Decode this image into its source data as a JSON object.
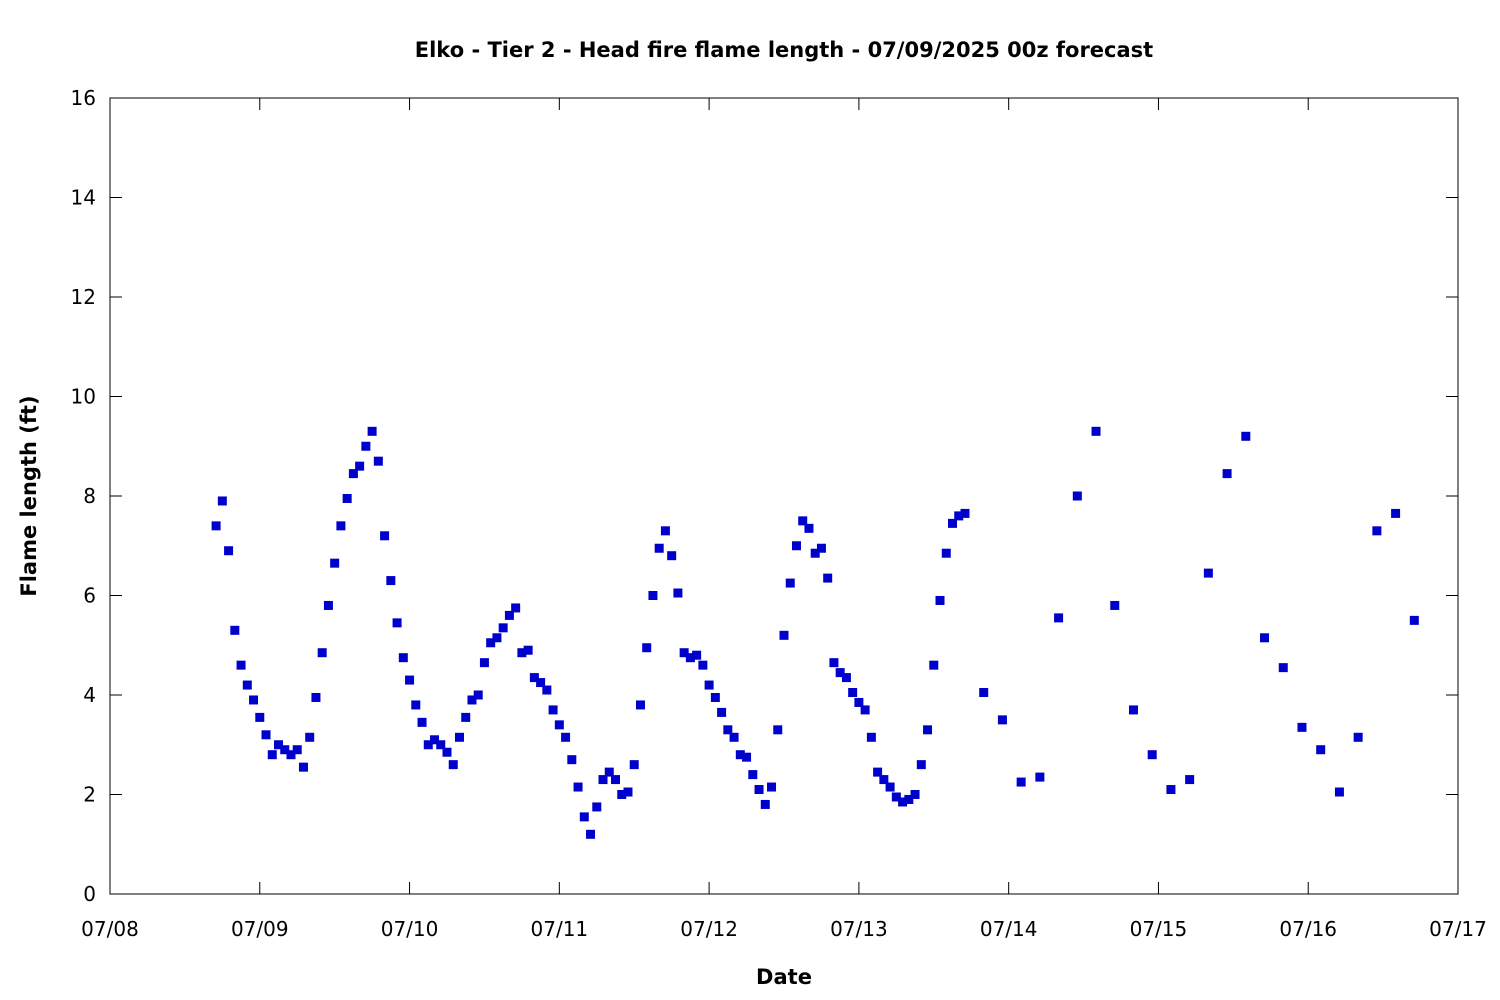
{
  "chart_data": {
    "type": "scatter",
    "title": "Elko - Tier 2 - Head fire flame length - 07/09/2025 00z forecast",
    "xlabel": "Date",
    "ylabel": "Flame length (ft)",
    "x_ticks": [
      "07/08",
      "07/09",
      "07/10",
      "07/11",
      "07/12",
      "07/13",
      "07/14",
      "07/15",
      "07/16",
      "07/17"
    ],
    "y_ticks": [
      0,
      2,
      4,
      6,
      8,
      10,
      12,
      14,
      16
    ],
    "xlim": [
      "07/08 00:00",
      "07/17 00:00"
    ],
    "ylim": [
      0,
      16
    ],
    "grid": false,
    "legend": "none",
    "marker": "square",
    "color": "#0000cc",
    "series": [
      {
        "x": [
          "07/08 17:00",
          "07/08 18:00",
          "07/08 19:00",
          "07/08 20:00",
          "07/08 21:00",
          "07/08 22:00",
          "07/08 23:00",
          "07/09 00:00",
          "07/09 01:00",
          "07/09 02:00",
          "07/09 03:00",
          "07/09 04:00",
          "07/09 05:00",
          "07/09 06:00",
          "07/09 07:00",
          "07/09 08:00",
          "07/09 09:00",
          "07/09 10:00",
          "07/09 11:00",
          "07/09 12:00",
          "07/09 13:00",
          "07/09 14:00",
          "07/09 15:00",
          "07/09 16:00",
          "07/09 17:00",
          "07/09 18:00",
          "07/09 19:00",
          "07/09 20:00",
          "07/09 21:00",
          "07/09 22:00",
          "07/09 23:00",
          "07/10 00:00",
          "07/10 01:00",
          "07/10 02:00",
          "07/10 03:00",
          "07/10 04:00",
          "07/10 05:00",
          "07/10 06:00",
          "07/10 07:00",
          "07/10 08:00",
          "07/10 09:00",
          "07/10 10:00",
          "07/10 11:00",
          "07/10 12:00",
          "07/10 13:00",
          "07/10 14:00",
          "07/10 15:00",
          "07/10 16:00",
          "07/10 17:00",
          "07/10 18:00",
          "07/10 19:00",
          "07/10 20:00",
          "07/10 21:00",
          "07/10 22:00",
          "07/10 23:00",
          "07/11 00:00",
          "07/11 01:00",
          "07/11 02:00",
          "07/11 03:00",
          "07/11 04:00",
          "07/11 05:00",
          "07/11 06:00",
          "07/11 07:00",
          "07/11 08:00",
          "07/11 09:00",
          "07/11 10:00",
          "07/11 11:00",
          "07/11 12:00",
          "07/11 13:00",
          "07/11 14:00",
          "07/11 15:00",
          "07/11 16:00",
          "07/11 17:00",
          "07/11 18:00",
          "07/11 19:00",
          "07/11 20:00",
          "07/11 21:00",
          "07/11 22:00",
          "07/11 23:00",
          "07/12 00:00",
          "07/12 01:00",
          "07/12 02:00",
          "07/12 03:00",
          "07/12 04:00",
          "07/12 05:00",
          "07/12 06:00",
          "07/12 07:00",
          "07/12 08:00",
          "07/12 09:00",
          "07/12 10:00",
          "07/12 11:00",
          "07/12 12:00",
          "07/12 13:00",
          "07/12 14:00",
          "07/12 15:00",
          "07/12 16:00",
          "07/12 17:00",
          "07/12 18:00",
          "07/12 19:00",
          "07/12 20:00",
          "07/12 21:00",
          "07/12 22:00",
          "07/12 23:00",
          "07/13 00:00",
          "07/13 01:00",
          "07/13 02:00",
          "07/13 03:00",
          "07/13 04:00",
          "07/13 05:00",
          "07/13 06:00",
          "07/13 07:00",
          "07/13 08:00",
          "07/13 09:00",
          "07/13 10:00",
          "07/13 11:00",
          "07/13 12:00",
          "07/13 13:00",
          "07/13 14:00",
          "07/13 15:00",
          "07/13 16:00",
          "07/13 17:00",
          "07/13 20:00",
          "07/13 23:00",
          "07/14 02:00",
          "07/14 05:00",
          "07/14 08:00",
          "07/14 11:00",
          "07/14 14:00",
          "07/14 17:00",
          "07/14 20:00",
          "07/14 23:00",
          "07/15 02:00",
          "07/15 05:00",
          "07/15 08:00",
          "07/15 11:00",
          "07/15 14:00",
          "07/15 17:00",
          "07/15 20:00",
          "07/15 23:00",
          "07/16 02:00",
          "07/16 05:00",
          "07/16 08:00",
          "07/16 11:00",
          "07/16 14:00",
          "07/16 17:00"
        ],
        "y": [
          7.4,
          7.9,
          6.9,
          5.3,
          4.6,
          4.2,
          3.9,
          3.55,
          3.2,
          2.8,
          3.0,
          2.9,
          2.8,
          2.9,
          2.55,
          3.15,
          3.95,
          4.85,
          5.8,
          6.65,
          7.4,
          7.95,
          8.45,
          8.6,
          9.0,
          9.3,
          8.7,
          7.2,
          6.3,
          5.45,
          4.75,
          4.3,
          3.8,
          3.45,
          3.0,
          3.1,
          3.0,
          2.85,
          2.6,
          3.15,
          3.55,
          3.9,
          4.0,
          4.65,
          5.05,
          5.15,
          5.35,
          5.6,
          5.75,
          4.85,
          4.9,
          4.35,
          4.25,
          4.1,
          3.7,
          3.4,
          3.15,
          2.7,
          2.15,
          1.55,
          1.2,
          1.75,
          2.3,
          2.45,
          2.3,
          2.0,
          2.05,
          2.6,
          3.8,
          4.95,
          6.0,
          6.95,
          7.3,
          6.8,
          6.05,
          4.85,
          4.75,
          4.8,
          4.6,
          4.2,
          3.95,
          3.65,
          3.3,
          3.15,
          2.8,
          2.75,
          2.4,
          2.1,
          1.8,
          2.15,
          3.3,
          5.2,
          6.25,
          7.0,
          7.5,
          7.35,
          6.85,
          6.95,
          6.35,
          4.65,
          4.45,
          4.35,
          4.05,
          3.85,
          3.7,
          3.15,
          2.45,
          2.3,
          2.15,
          1.95,
          1.85,
          1.9,
          2.0,
          2.6,
          3.3,
          4.6,
          5.9,
          6.85,
          7.45,
          7.6,
          7.65,
          4.05,
          3.5,
          2.25,
          2.35,
          5.55,
          8.0,
          9.3,
          5.8,
          3.7,
          2.8,
          2.1,
          2.3,
          6.45,
          8.45,
          9.2,
          5.15,
          4.55,
          3.35,
          2.9,
          2.05,
          3.15,
          7.3,
          7.65,
          5.5
        ]
      }
    ]
  }
}
